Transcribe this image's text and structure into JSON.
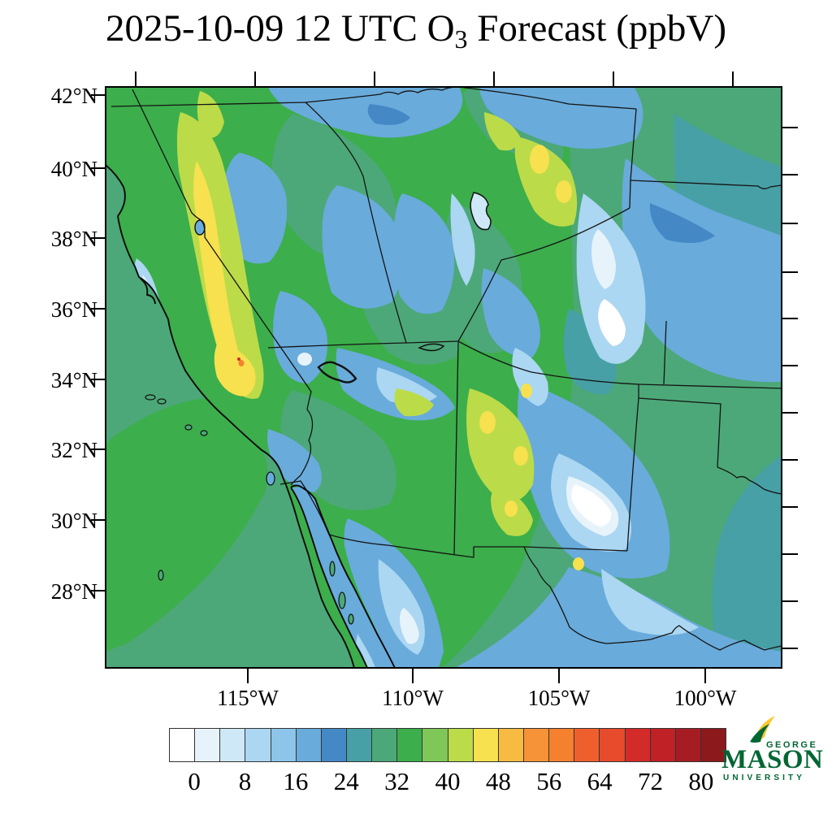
{
  "figure": {
    "title": {
      "text_before_sub": "2025-10-09 12 UTC O",
      "subscript": "3",
      "text_after_sub": " Forecast (ppbV)"
    }
  },
  "axes": {
    "lat_tick_labels": [
      "42°N",
      "40°N",
      "38°N",
      "36°N",
      "34°N",
      "32°N",
      "30°N",
      "28°N"
    ],
    "lon_tick_labels": [
      "115°W",
      "110°W",
      "105°W",
      "100°W"
    ]
  },
  "colorbar": {
    "units": "ppbV",
    "tick_labels": [
      "0",
      "8",
      "16",
      "24",
      "32",
      "40",
      "48",
      "56",
      "64",
      "72",
      "80"
    ],
    "segment_colors": [
      "#ffffff",
      "#e7f3fb",
      "#cfe8f7",
      "#abd7f2",
      "#8cc5e9",
      "#69abdb",
      "#4489c6",
      "#47a0a5",
      "#4ca878",
      "#3cae4c",
      "#7fc857",
      "#bcdb49",
      "#f7e14e",
      "#f7bb42",
      "#f69338",
      "#f5812f",
      "#ef5f2e",
      "#e64b2b",
      "#d32b2a",
      "#c02127",
      "#a51d23",
      "#8c1a1c"
    ]
  },
  "logo": {
    "top_word": "GEORGE",
    "main_word": "MASON",
    "bottom_word": "UNIVERSITY",
    "green": "#006633",
    "gold": "#FFC72C"
  },
  "chart_data": {
    "type": "heatmap",
    "title": "2025-10-09 12 UTC O3 Forecast (ppbV)",
    "variable": "Surface ozone mixing ratio forecast",
    "units": "ppbV",
    "x_tick_labels": [
      "115°W",
      "110°W",
      "105°W",
      "100°W"
    ],
    "y_tick_labels": [
      "42°N",
      "40°N",
      "38°N",
      "36°N",
      "34°N",
      "32°N",
      "30°N",
      "28°N"
    ],
    "colorbar_tick_values": [
      0,
      8,
      16,
      24,
      32,
      40,
      48,
      56,
      64,
      72,
      80
    ],
    "colorbar_interval_per_segment": 4,
    "colorbar_range": [
      0,
      84
    ],
    "legend_position": "bottom",
    "region": "Southwestern United States and northern Mexico",
    "notable_features": [
      "Uniform ~28-36 ppbV green field over the Pacific Ocean",
      "Yellow band of ~44-48 ppbV along the Sierra Nevada crest in eastern California",
      "Near-zero white/pale values over California Central Valley, Colorado Rockies, Wasatch, Texas Panhandle and Sonora",
      "Blue 8-24 ppbV over southern Idaho, eastern Colorado plains, eastern New Mexico, Texas and Gulf of California",
      "Scattered yellow 40-48 ppbV spots over New Mexico and northwest Colorado",
      "Tiny 56-64 ppbV orange-red spot in the southern Sierra Nevada"
    ]
  }
}
